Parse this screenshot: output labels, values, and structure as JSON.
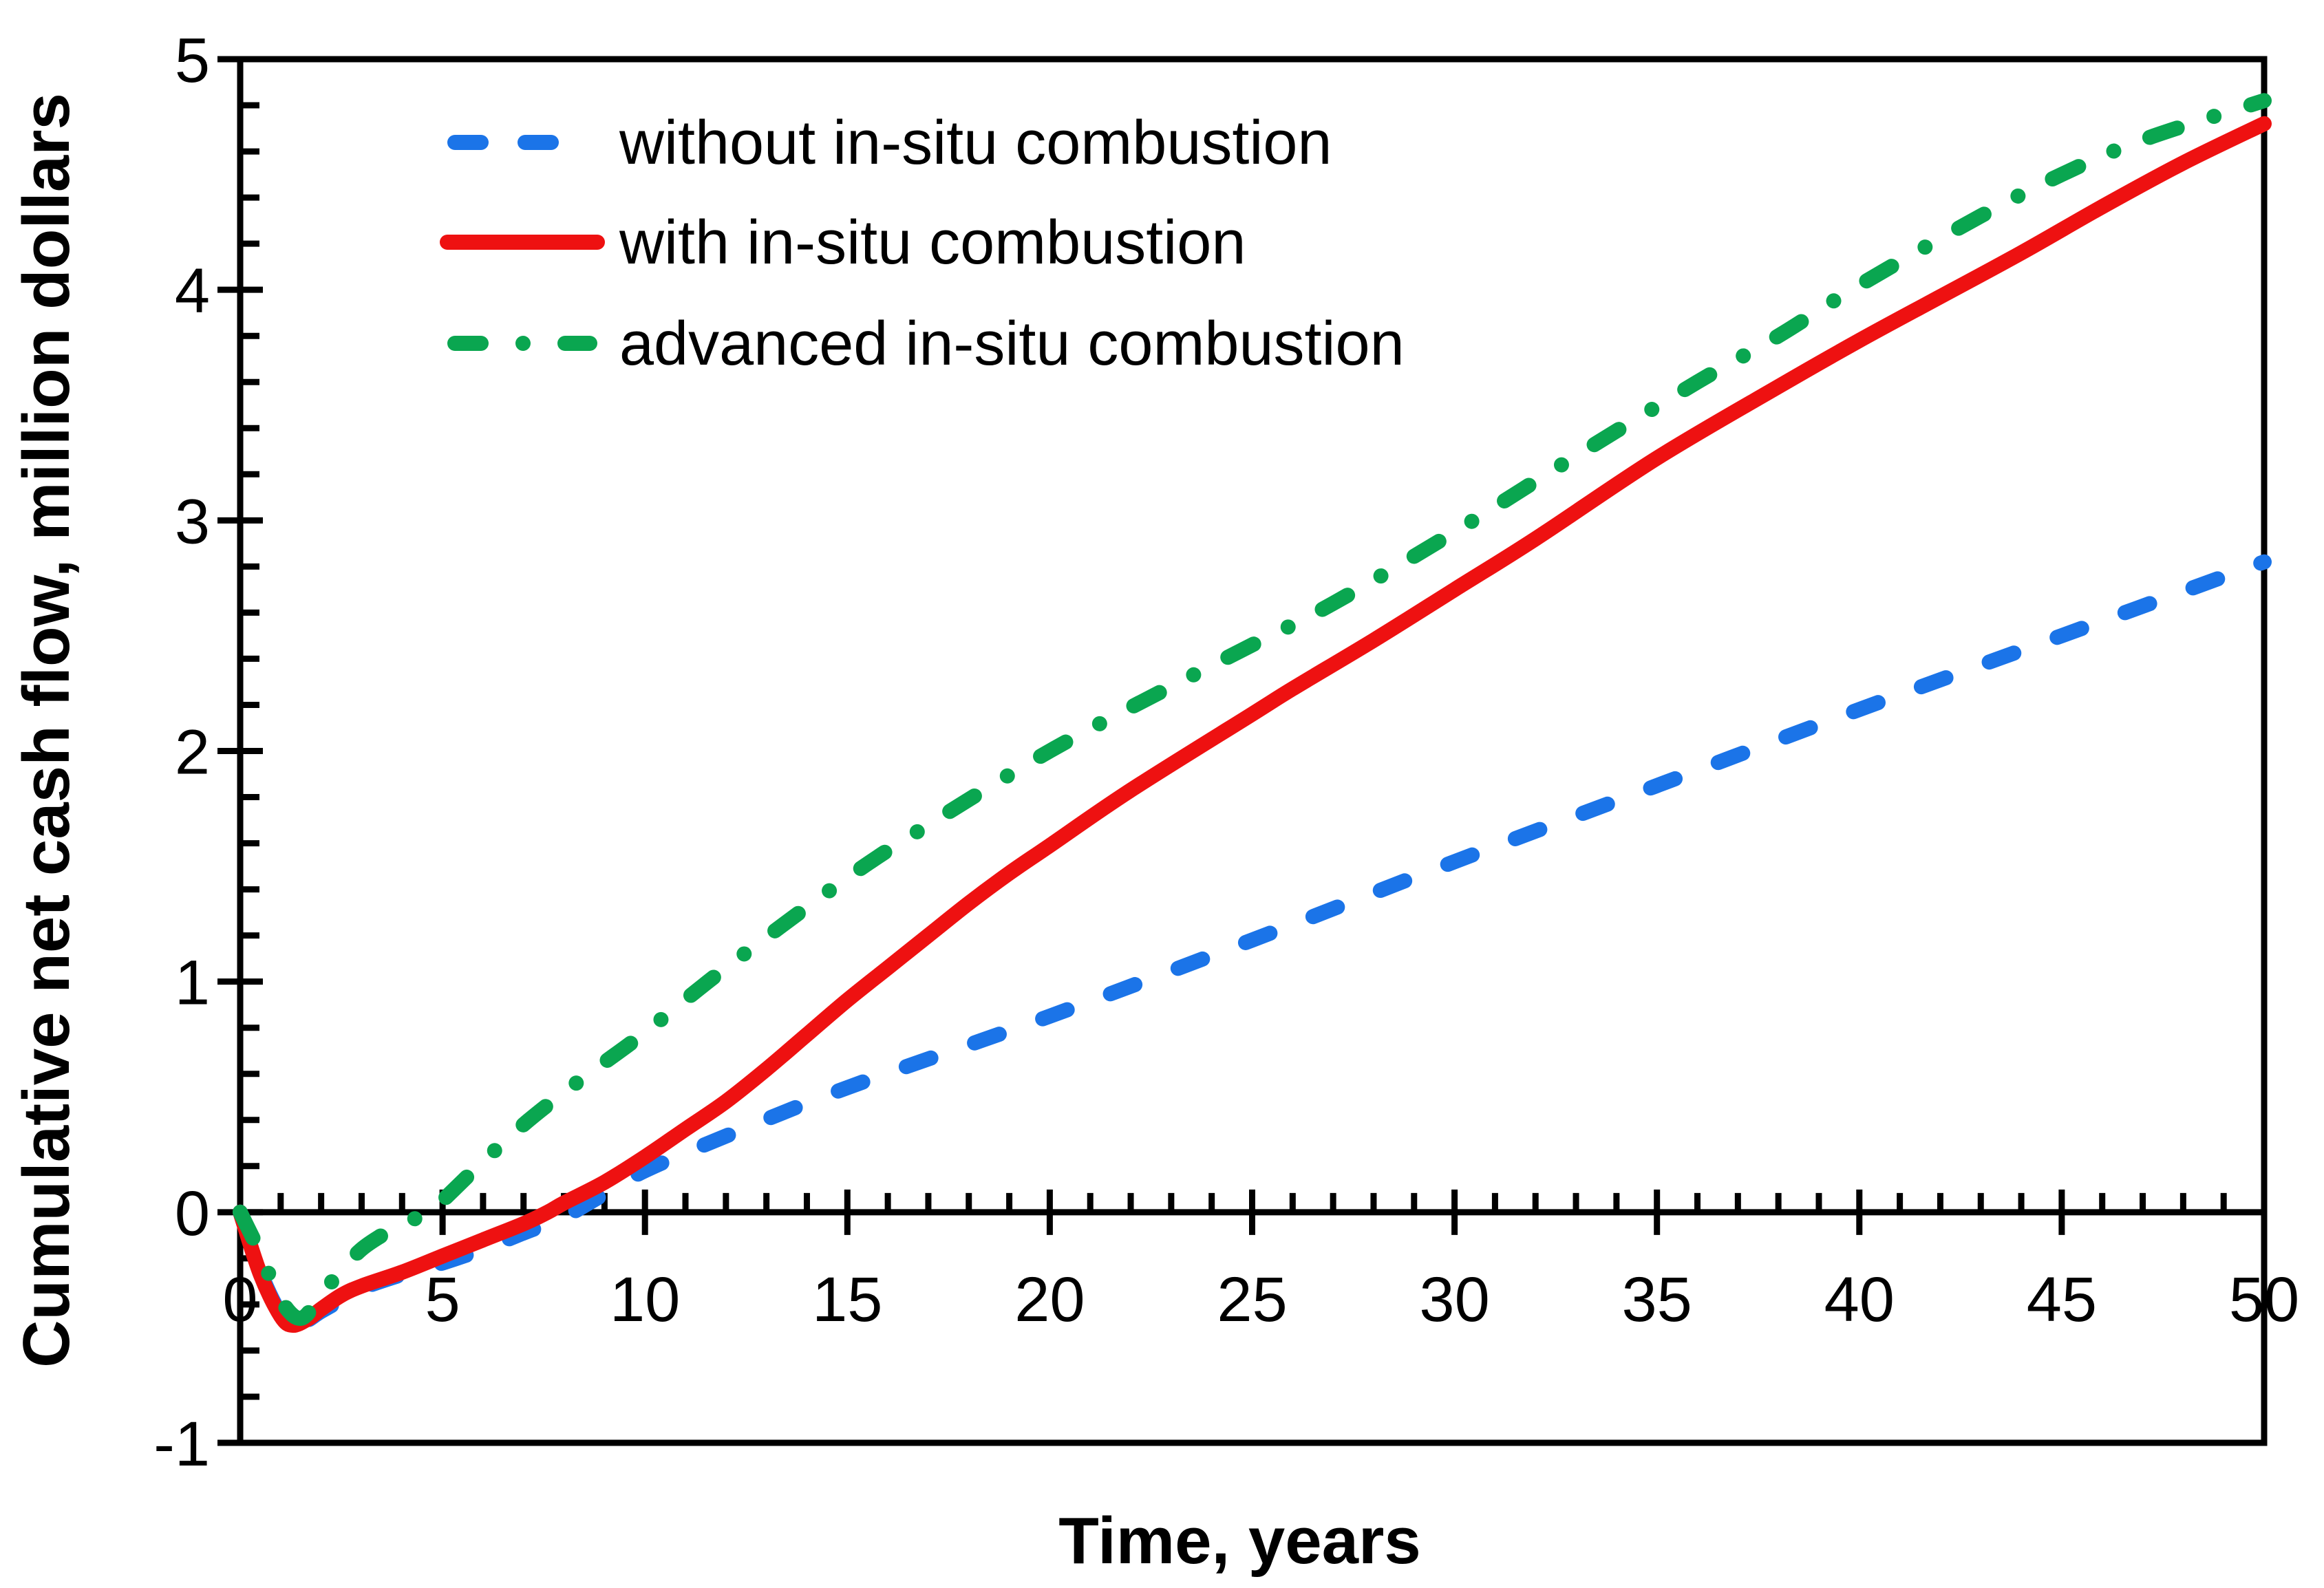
{
  "chart_data": {
    "type": "line",
    "title": "",
    "xlabel": "Time, years",
    "ylabel": "Cumulative net cash flow, million dollars",
    "xlim": [
      0,
      50
    ],
    "ylim": [
      -1,
      5
    ],
    "x_major_step": 5,
    "x_minor_step": 1,
    "y_major_step": 1,
    "y_minor_step": 0.2,
    "x_tick_labels": [
      "0",
      "5",
      "10",
      "15",
      "20",
      "25",
      "30",
      "35",
      "40",
      "45",
      "50"
    ],
    "y_tick_labels": [
      "-1",
      "0",
      "1",
      "2",
      "3",
      "4",
      "5"
    ],
    "grid": false,
    "legend_position": "upper-left-inside",
    "axis_color": "#000000",
    "background_color": "#ffffff",
    "series": [
      {
        "name": "without in-situ combustion",
        "color": "#1b74e8",
        "style": "dashed",
        "points": [
          [
            0,
            0
          ],
          [
            0.5,
            -0.26
          ],
          [
            1,
            -0.44
          ],
          [
            1.4,
            -0.49
          ],
          [
            2,
            -0.43
          ],
          [
            2.5,
            -0.38
          ],
          [
            3,
            -0.33
          ],
          [
            4,
            -0.27
          ],
          [
            5,
            -0.22
          ],
          [
            6,
            -0.16
          ],
          [
            7,
            -0.09
          ],
          [
            8,
            -0.02
          ],
          [
            9,
            0.08
          ],
          [
            10,
            0.18
          ],
          [
            12,
            0.33
          ],
          [
            15,
            0.54
          ],
          [
            20,
            0.85
          ],
          [
            25,
            1.18
          ],
          [
            30,
            1.52
          ],
          [
            35,
            1.85
          ],
          [
            40,
            2.18
          ],
          [
            45,
            2.5
          ],
          [
            50,
            2.82
          ]
        ]
      },
      {
        "name": "with in-situ combustion",
        "color": "#ee1111",
        "style": "solid",
        "points": [
          [
            0,
            0
          ],
          [
            0.5,
            -0.27
          ],
          [
            1,
            -0.45
          ],
          [
            1.3,
            -0.49
          ],
          [
            1.7,
            -0.46
          ],
          [
            2,
            -0.42
          ],
          [
            2.5,
            -0.36
          ],
          [
            3,
            -0.32
          ],
          [
            4,
            -0.26
          ],
          [
            5,
            -0.19
          ],
          [
            6,
            -0.12
          ],
          [
            7,
            -0.05
          ],
          [
            7.6,
            0
          ],
          [
            8,
            0.04
          ],
          [
            9,
            0.13
          ],
          [
            10,
            0.24
          ],
          [
            11,
            0.36
          ],
          [
            12,
            0.48
          ],
          [
            13,
            0.62
          ],
          [
            14,
            0.77
          ],
          [
            15,
            0.92
          ],
          [
            16,
            1.06
          ],
          [
            17,
            1.2
          ],
          [
            18,
            1.34
          ],
          [
            19,
            1.47
          ],
          [
            20,
            1.59
          ],
          [
            22,
            1.83
          ],
          [
            25,
            2.16
          ],
          [
            26,
            2.27
          ],
          [
            28,
            2.48
          ],
          [
            30,
            2.7
          ],
          [
            32,
            2.92
          ],
          [
            35,
            3.27
          ],
          [
            38,
            3.58
          ],
          [
            40,
            3.78
          ],
          [
            42,
            3.97
          ],
          [
            44,
            4.16
          ],
          [
            46,
            4.36
          ],
          [
            48,
            4.55
          ],
          [
            50,
            4.72
          ]
        ]
      },
      {
        "name": "advanced in-situ combustion",
        "color": "#0aa650",
        "style": "dash-dot",
        "points": [
          [
            0,
            0
          ],
          [
            0.5,
            -0.18
          ],
          [
            1,
            -0.38
          ],
          [
            1.5,
            -0.46
          ],
          [
            2,
            -0.36
          ],
          [
            2.5,
            -0.25
          ],
          [
            3,
            -0.16
          ],
          [
            3.5,
            -0.1
          ],
          [
            4,
            -0.05
          ],
          [
            4.7,
            0
          ],
          [
            5,
            0.05
          ],
          [
            6,
            0.22
          ],
          [
            7,
            0.38
          ],
          [
            8,
            0.52
          ],
          [
            9,
            0.65
          ],
          [
            10,
            0.78
          ],
          [
            12,
            1.06
          ],
          [
            15,
            1.45
          ],
          [
            17,
            1.68
          ],
          [
            20,
            2.0
          ],
          [
            23,
            2.28
          ],
          [
            25,
            2.46
          ],
          [
            27,
            2.64
          ],
          [
            30,
            2.95
          ],
          [
            33,
            3.28
          ],
          [
            36,
            3.6
          ],
          [
            38,
            3.8
          ],
          [
            40,
            4.02
          ],
          [
            43,
            4.32
          ],
          [
            45,
            4.5
          ],
          [
            47,
            4.65
          ],
          [
            50,
            4.82
          ]
        ]
      }
    ],
    "legend": [
      {
        "label": "without in-situ combustion"
      },
      {
        "label": "with in-situ combustion"
      },
      {
        "label": "advanced in-situ combustion"
      }
    ]
  }
}
